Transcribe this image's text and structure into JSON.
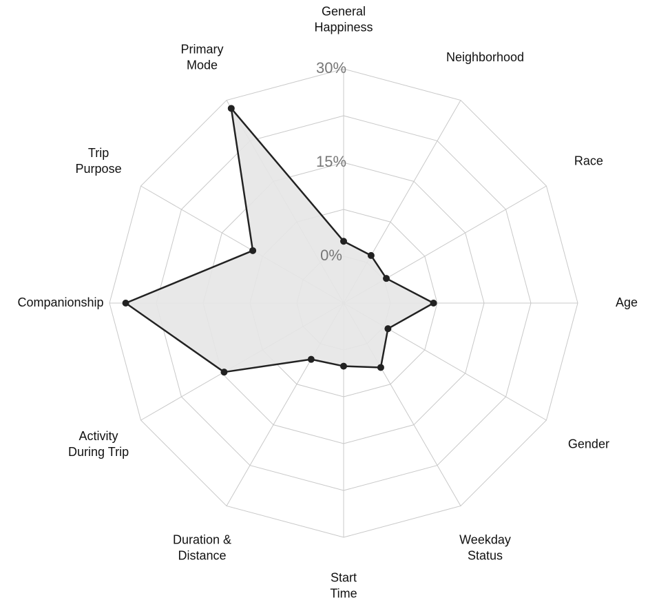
{
  "chart_data": {
    "type": "radar",
    "categories": [
      [
        "General",
        "Happiness"
      ],
      [
        "Neighborhood"
      ],
      [
        "Race"
      ],
      [
        "Age"
      ],
      [
        "Gender"
      ],
      [
        "Weekday",
        "Status"
      ],
      [
        "Start",
        "Time"
      ],
      [
        "Duration &",
        "Distance"
      ],
      [
        "Activity",
        "During Trip"
      ],
      [
        "Companionship"
      ],
      [
        "Trip",
        "Purpose"
      ],
      [
        "Primary",
        "Mode"
      ]
    ],
    "values": [
      2.4,
      1.3,
      0.4,
      6.9,
      0.7,
      4.4,
      2.6,
      2.9,
      14.6,
      27.4,
      9.3,
      28.5
    ],
    "ylim": [
      -7.5,
      30
    ],
    "yticks": [
      {
        "value": 0,
        "label": "0%"
      },
      {
        "value": 15,
        "label": "15%"
      },
      {
        "value": 30,
        "label": "30%"
      }
    ],
    "minor_yticks": [
      7.5,
      22.5
    ],
    "color": "#222222",
    "fill": "#e6e6e6",
    "grid": true
  }
}
